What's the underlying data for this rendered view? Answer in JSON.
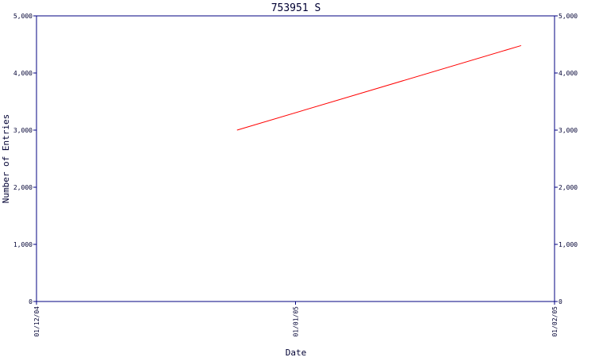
{
  "chart_data": {
    "type": "line",
    "title": "753951 S",
    "xlabel": "Date",
    "ylabel": "Number of Entries",
    "x_ticks": [
      "01/12/04",
      "01/01/05",
      "01/02/05"
    ],
    "y_ticks": [
      "0",
      "1,000",
      "2,000",
      "3,000",
      "4,000",
      "5,000"
    ],
    "ylim": [
      0,
      5000
    ],
    "xlim": [
      "2004-12-01",
      "2005-02-01"
    ],
    "series": [
      {
        "color": "#ff0000",
        "points": [
          {
            "x": "2004-12-25",
            "y": 3000
          },
          {
            "x": "2005-01-28",
            "y": 4480
          }
        ]
      }
    ],
    "grid": false,
    "axis_color": "#000080",
    "right_axis_duplicate": true
  }
}
